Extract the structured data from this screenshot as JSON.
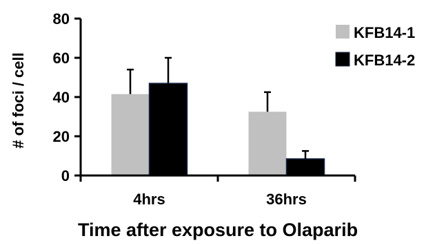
{
  "chart_data": {
    "type": "bar",
    "categories": [
      "4hrs",
      "36hrs"
    ],
    "series": [
      {
        "name": "KFB14-1",
        "color": "#c0c0c0",
        "values": [
          41.5,
          32.5
        ],
        "errors": [
          12.5,
          10
        ]
      },
      {
        "name": "KFB14-2",
        "color": "#000000",
        "values": [
          47,
          8.5
        ],
        "errors": [
          13,
          4
        ]
      }
    ],
    "title": "",
    "xlabel": "Time after exposure to Olaparib",
    "ylabel": "# of foci / cell",
    "ylim": [
      0,
      80
    ],
    "yticks": [
      "0",
      "20",
      "40",
      "60",
      "80"
    ],
    "error_bars": "upper",
    "legend": "top-right",
    "grid": false
  }
}
